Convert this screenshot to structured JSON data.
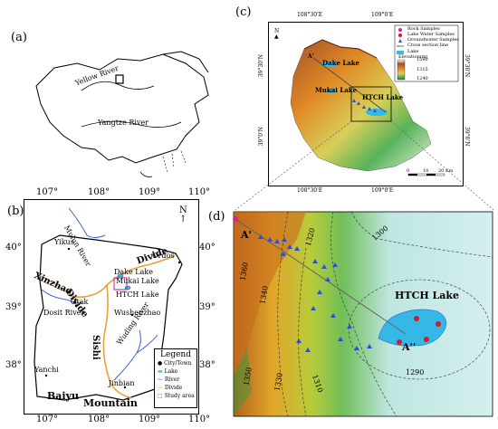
{
  "panel_a": {
    "letter": "(a)",
    "labels": {
      "yellow_river": "Yellow River",
      "yangtze_river": "Yangtze River"
    }
  },
  "panel_b": {
    "letter": "(b)",
    "x_ticks": [
      "107°",
      "108°",
      "109°",
      "110°"
    ],
    "y_ticks_left": [
      "40°",
      "39°",
      "38°"
    ],
    "y_ticks_right": [
      "40°",
      "39°",
      "38°"
    ],
    "north": "N",
    "places": {
      "yikus": "Yikus",
      "ordos": "Ordos",
      "otak": "Otak",
      "wushenzhao": "Wushenzhao",
      "yanchi": "Yanchi",
      "jinbian": "Jinbian",
      "dake_lake": "Dake Lake",
      "mukai_lake": "Mukai Lake",
      "htch_lake": "HTCH Lake"
    },
    "rivers": {
      "mulun": "Mulun River",
      "dosit": "Dosit River",
      "wuding": "Wuding River"
    },
    "divides": {
      "xinzhao": "Xinzhao",
      "divide_left": "Divide",
      "divide_top": "Divide",
      "sishi": "Sishi",
      "baiyu": "Baiyu",
      "mountain": "Mountain"
    },
    "legend": {
      "title": "Legend",
      "items": [
        "City/Town",
        "Lake",
        "River",
        "Divide",
        "Study area"
      ]
    }
  },
  "panel_c": {
    "letter": "(c)",
    "top_ticks": [
      "108°30'E",
      "109°0'E"
    ],
    "bottom_ticks": [
      "108°30'E",
      "109°0'E"
    ],
    "left_ticks": [
      "39°30'N",
      "39°0'N"
    ],
    "right_ticks": [
      "39°30'N",
      "39°0'N"
    ],
    "north": "N",
    "lakes": {
      "dake": "Dake Lake",
      "mukai": "Mukai Lake",
      "htch": "HTCH Lake"
    },
    "section": "A'",
    "legend": {
      "rock": "Rock Samples",
      "lake_water": "Lake Water Samples",
      "groundwater": "Groundwater Samples",
      "cross": "Cross section line",
      "lake": "Lake",
      "elevation": "Elevation(m)",
      "elev_values": [
        "1590",
        "1315",
        "1240"
      ]
    },
    "scale": [
      "0",
      "10",
      "20 Km"
    ]
  },
  "panel_d": {
    "letter": "(d)",
    "contours": [
      "1320",
      "1300",
      "1360",
      "1340",
      "1350",
      "1330",
      "1310",
      "1290"
    ],
    "section_start": "A'",
    "section_end": "A''",
    "lake": "HTCH Lake"
  },
  "colors": {
    "divide": "#e8a33a",
    "river": "#3a5fd0",
    "lake": "#35b7e8",
    "sample_rock": "#e0208f",
    "sample_lake": "#d9182b",
    "sample_ground": "#2a4fd8",
    "study_box": "#d2399a"
  }
}
